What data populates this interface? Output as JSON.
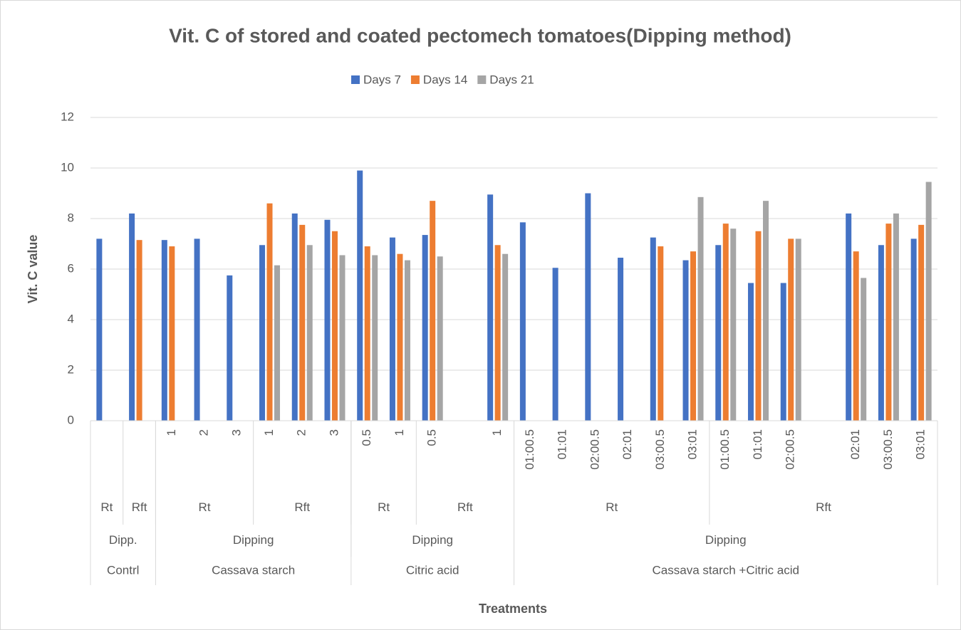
{
  "chart_data": {
    "type": "bar",
    "title": "Vit. C of stored and coated pectomech tomatoes(Dipping method)",
    "y_label": "Vit. C value",
    "x_label": "Treatments",
    "categories": [
      null,
      null,
      "1",
      "2",
      "3",
      "1",
      "2",
      "3",
      "0.5",
      "1",
      "0.5",
      null,
      "1",
      "01:00.5",
      "01:01",
      "02:00.5",
      "02:01",
      "03:00.5",
      "03:01",
      "01:00.5",
      "01:01",
      "02:00.5",
      null,
      "02:01",
      "03:00.5",
      "03:01"
    ],
    "category_levels": [
      [
        {
          "label": "Rt",
          "count": 1
        },
        {
          "label": "Rft",
          "count": 1
        },
        {
          "label": "Rt",
          "count": 3
        },
        {
          "label": "Rft",
          "count": 3
        },
        {
          "label": "Rt",
          "count": 2
        },
        {
          "label": "Rft",
          "count": 3
        },
        {
          "label": "Rt",
          "count": 6
        },
        {
          "label": "Rft",
          "count": 7
        }
      ],
      [
        {
          "label": "Dipp.",
          "count": 2
        },
        {
          "label": "Dipping",
          "count": 6
        },
        {
          "label": "Dipping",
          "count": 5
        },
        {
          "label": "Dipping",
          "count": 13
        }
      ],
      [
        {
          "label": "Contrl",
          "count": 2
        },
        {
          "label": "Cassava starch",
          "count": 6
        },
        {
          "label": "Citric acid",
          "count": 5
        },
        {
          "label": "Cassava starch +Citric acid",
          "count": 13
        }
      ]
    ],
    "series": [
      {
        "name": "Days 7",
        "color": "#4472c4",
        "values": [
          7.2,
          8.2,
          7.15,
          7.2,
          5.75,
          6.95,
          8.2,
          7.95,
          9.9,
          7.25,
          7.35,
          null,
          8.95,
          7.85,
          6.05,
          9.0,
          6.45,
          7.25,
          6.35,
          6.95,
          5.45,
          5.45,
          null,
          8.2,
          6.95,
          7.2
        ]
      },
      {
        "name": "Days 14",
        "color": "#ed7d31",
        "values": [
          null,
          7.15,
          6.9,
          null,
          null,
          8.6,
          7.75,
          7.5,
          6.9,
          6.6,
          8.7,
          null,
          6.95,
          null,
          null,
          null,
          null,
          6.9,
          6.7,
          7.8,
          7.5,
          7.2,
          null,
          6.7,
          7.8,
          7.75
        ]
      },
      {
        "name": "Days 21",
        "color": "#a5a5a5",
        "values": [
          null,
          null,
          null,
          null,
          null,
          6.15,
          6.95,
          6.55,
          6.55,
          6.35,
          6.5,
          null,
          6.6,
          null,
          null,
          null,
          null,
          null,
          8.85,
          7.6,
          8.7,
          7.2,
          null,
          5.65,
          8.2,
          9.45
        ]
      }
    ],
    "ylim": [
      0,
      12
    ],
    "yticks": [
      0,
      2,
      4,
      6,
      8,
      10,
      12
    ],
    "grid": true,
    "legend": "top"
  }
}
